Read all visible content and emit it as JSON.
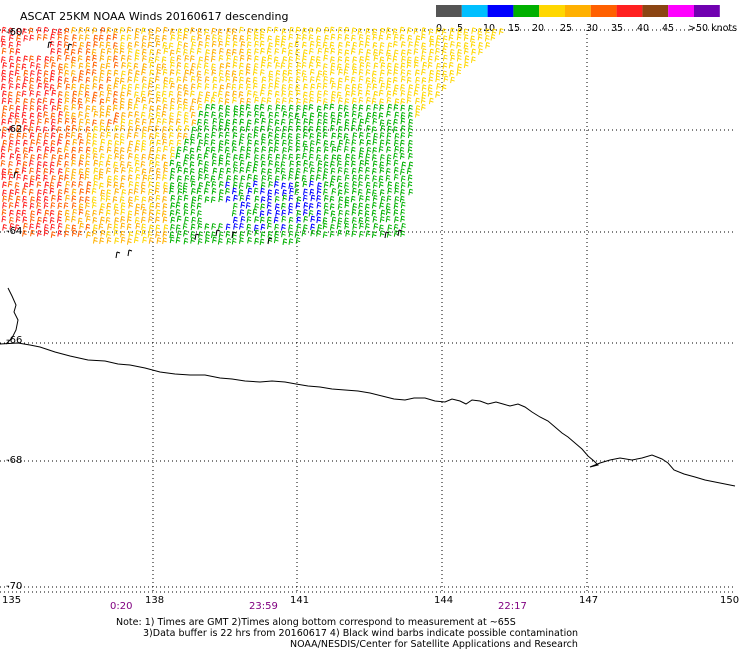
{
  "title": "ASCAT 25KM NOAA Winds 20160617 descending",
  "colorbar": {
    "labels": [
      "0",
      "5",
      "10",
      "15",
      "20",
      "25",
      "30",
      "35",
      "40",
      "45",
      ">50 knots"
    ],
    "colors": [
      "#555555",
      "#00bfff",
      "#0000ff",
      "#00b000",
      "#ffd700",
      "#ffb000",
      "#ff6000",
      "#ff2020",
      "#8b4513",
      "#ff00ff",
      "#7000b0"
    ]
  },
  "lat_labels": [
    "-60",
    "-62",
    "-64",
    "-66",
    "-68",
    "-70"
  ],
  "lon_labels": [
    "135",
    "138",
    "141",
    "144",
    "147",
    "150"
  ],
  "time_labels": [
    "0:20",
    "23:59",
    "22:17"
  ],
  "notes": [
    "Note: 1) Times are GMT 2)Times along bottom correspond to measurement at ~65S",
    "3)Data buffer is 22 hrs from 20160617 4) Black wind barbs indicate possible contamination",
    "NOAA/NESDIS/Center for Satellite Applications and Research"
  ]
}
